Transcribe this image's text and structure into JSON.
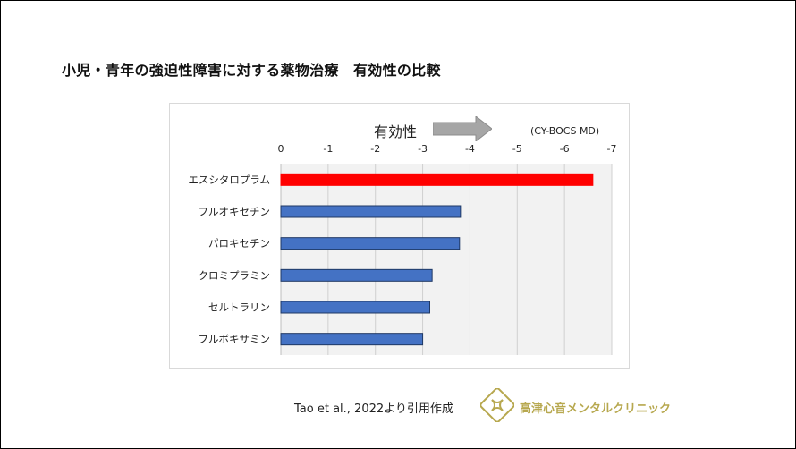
{
  "slide": {
    "title": "小児・青年の強迫性障害に対する薬物治療　有効性の比較",
    "source": "Tao et al., 2022より引用作成",
    "clinic_name": "高津心音メンタルクリニック"
  },
  "chart_data": {
    "type": "bar",
    "orientation": "horizontal",
    "categories": [
      "エスシタロプラム",
      "フルオキセチン",
      "パロキセチン",
      "クロミプラミン",
      "セルトラリン",
      "フルボキサミン"
    ],
    "values": [
      -6.6,
      -3.8,
      -3.78,
      -3.2,
      -3.15,
      -3.0
    ],
    "highlight_index": 0,
    "xlim": [
      0,
      -7
    ],
    "xticks": [
      "0",
      "-1",
      "-2",
      "-3",
      "-4",
      "-5",
      "-6",
      "-7"
    ],
    "direction_label": "有効性",
    "unit_label": "(CY-BOCS MD)",
    "colors": {
      "highlight": "#ff0000",
      "bar": "#4472c4",
      "bar_border": "#1f3864",
      "plot_bg": "#f2f2f2",
      "grid": "#d0d0d0",
      "arrow": "#a6a6a6",
      "logo": "#b7a84f"
    }
  }
}
